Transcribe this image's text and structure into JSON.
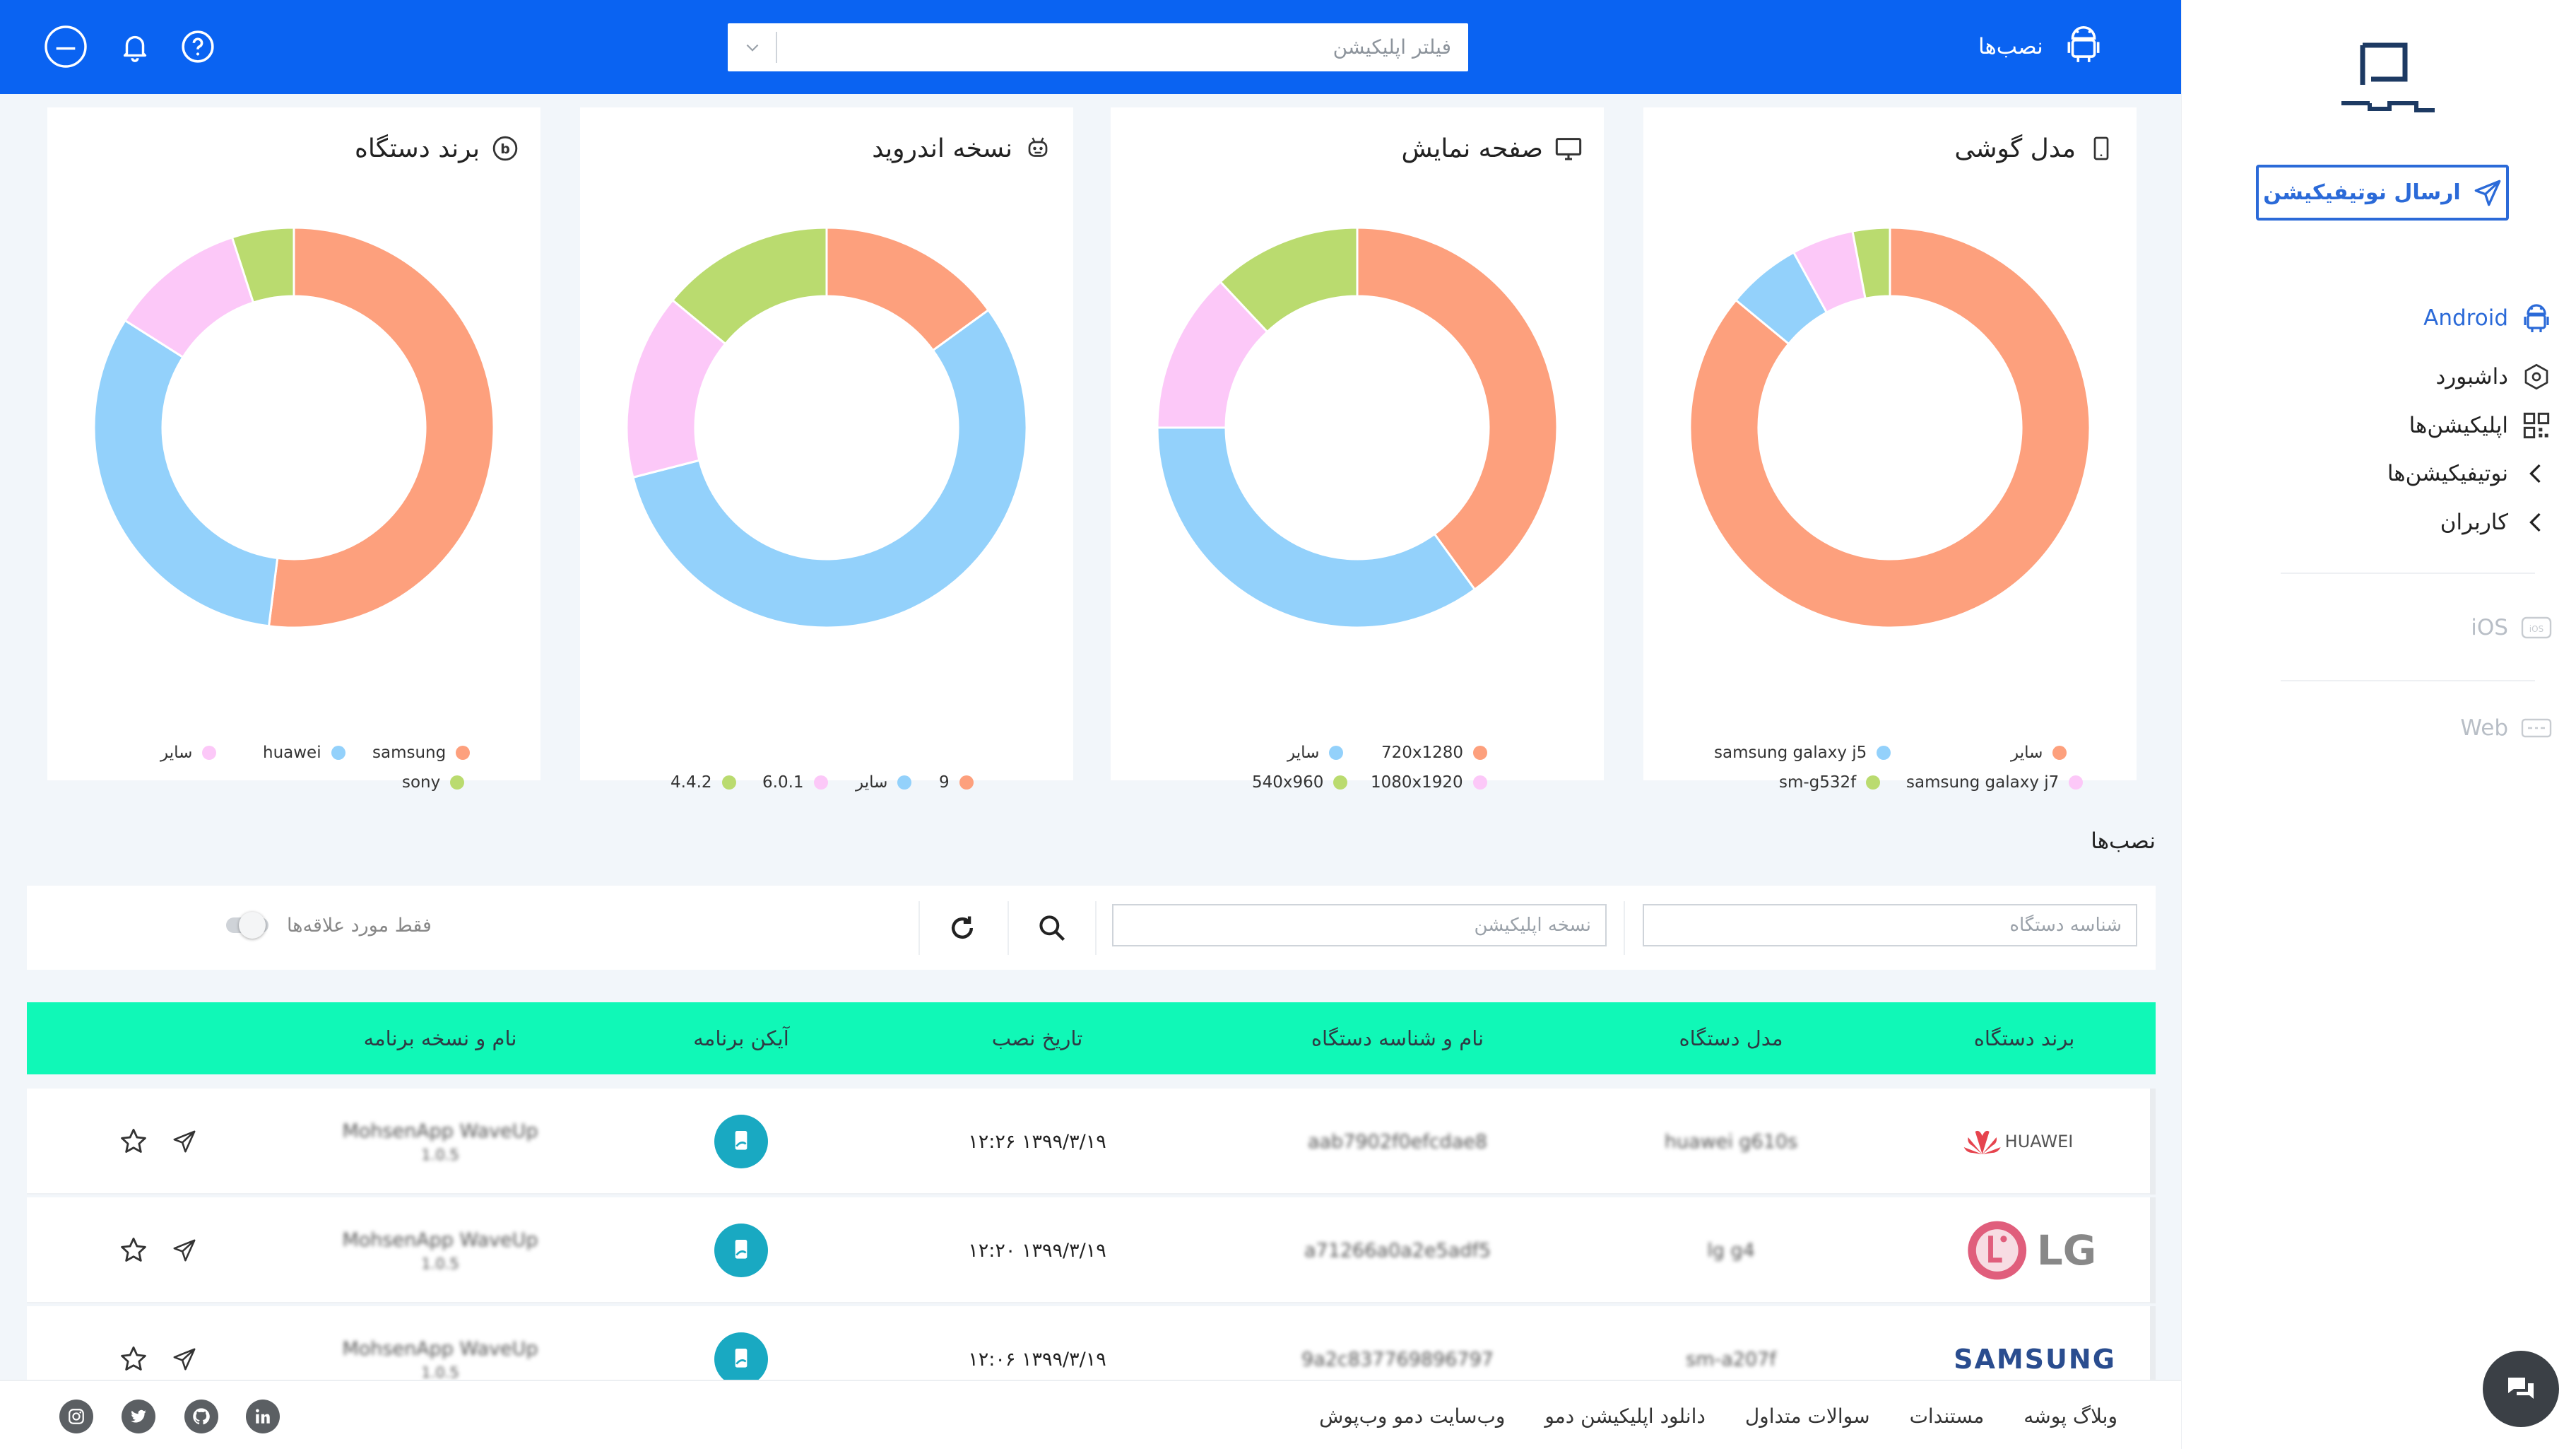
{
  "header": {
    "installs_tab": "نصب‌ها",
    "search_placeholder": "فیلتر اپلیکیشن"
  },
  "sidebar": {
    "send_button": "ارسال نوتیفیکیشن",
    "platforms": {
      "android": "Android",
      "ios": "iOS",
      "web": "Web"
    },
    "items": [
      {
        "label": "داشبورد",
        "icon": "dashboard-icon"
      },
      {
        "label": "اپلیکیشن‌ها",
        "icon": "qr-apps-icon"
      },
      {
        "label": "نوتیفیکیشن‌ها",
        "icon": "chevron-left-icon"
      },
      {
        "label": "کاربران",
        "icon": "chevron-left-icon"
      }
    ]
  },
  "colors": {
    "orange": "#fda07d",
    "blue": "#93d1fb",
    "pink": "#fcc8f8",
    "green": "#badb6f",
    "primary": "#0a63f2",
    "table_header": "#10f8b7"
  },
  "cards": [
    {
      "title": "برند دستگاه",
      "icon": "brand-icon",
      "slices": [
        {
          "label": "samsung",
          "value": 52,
          "color": "#fda07d"
        },
        {
          "label": "huawei",
          "value": 32,
          "color": "#93d1fb"
        },
        {
          "label": "سایر",
          "value": 11,
          "color": "#fcc8f8"
        },
        {
          "label": "sony",
          "value": 5,
          "color": "#badb6f"
        }
      ]
    },
    {
      "title": "نسخه اندروید",
      "icon": "android-robot-icon",
      "slices": [
        {
          "label": "9",
          "value": 15,
          "color": "#fda07d"
        },
        {
          "label": "سایر",
          "value": 56,
          "color": "#93d1fb"
        },
        {
          "label": "6.0.1",
          "value": 15,
          "color": "#fcc8f8"
        },
        {
          "label": "4.4.2",
          "value": 14,
          "color": "#badb6f"
        }
      ]
    },
    {
      "title": "صفحه نمایش",
      "icon": "monitor-icon",
      "slices": [
        {
          "label": "720x1280",
          "value": 40,
          "color": "#fda07d"
        },
        {
          "label": "سایر",
          "value": 35,
          "color": "#93d1fb"
        },
        {
          "label": "1080x1920",
          "value": 13,
          "color": "#fcc8f8"
        },
        {
          "label": "540x960",
          "value": 12,
          "color": "#badb6f"
        }
      ]
    },
    {
      "title": "مدل گوشی",
      "icon": "phone-icon",
      "slices": [
        {
          "label": "سایر",
          "value": 86,
          "color": "#fda07d"
        },
        {
          "label": "samsung galaxy j5",
          "value": 6,
          "color": "#93d1fb"
        },
        {
          "label": "samsung galaxy j7",
          "value": 5,
          "color": "#fcc8f8"
        },
        {
          "label": "sm-g532f",
          "value": 3,
          "color": "#badb6f"
        }
      ]
    }
  ],
  "installs": {
    "section_title": "نصب‌ها",
    "device_id_placeholder": "شناسه دستگاه",
    "app_version_placeholder": "نسخه اپلیکیشن",
    "favorites_label": "فقط مورد علاقه‌ها",
    "columns": [
      "برند دستگاه",
      "مدل دستگاه",
      "نام و شناسه دستگاه",
      "تاریخ نصب",
      "آیکن برنامه",
      "نام و نسخه برنامه"
    ],
    "rows": [
      {
        "brand": "HUAWEI",
        "model": "huawei g610s",
        "device": "aab7902f0efcdae8",
        "date": "۱۳۹۹/۳/۱۹ ۱۲:۲۶",
        "app_name": "MohsenApp WaveUp",
        "app_version": "1.0.5"
      },
      {
        "brand": "LG",
        "model": "lg g4",
        "device": "a71266a0a2e5adf5",
        "date": "۱۳۹۹/۳/۱۹ ۱۲:۲۰",
        "app_name": "MohsenApp WaveUp",
        "app_version": "1.0.5"
      },
      {
        "brand": "SAMSUNG",
        "model": "sm-a207f",
        "device": "9a2c837769896797",
        "date": "۱۳۹۹/۳/۱۹ ۱۲:۰۶",
        "app_name": "MohsenApp WaveUp",
        "app_version": "1.0.5"
      }
    ]
  },
  "footer": {
    "links": [
      "وبلاگ پوشه",
      "مستندات",
      "سوالات متداول",
      "دانلود اپلیکیشن دمو",
      "وب‌سایت دمو وب‌پوش"
    ],
    "social": [
      "linkedin-icon",
      "github-icon",
      "twitter-icon",
      "instagram-icon"
    ]
  }
}
